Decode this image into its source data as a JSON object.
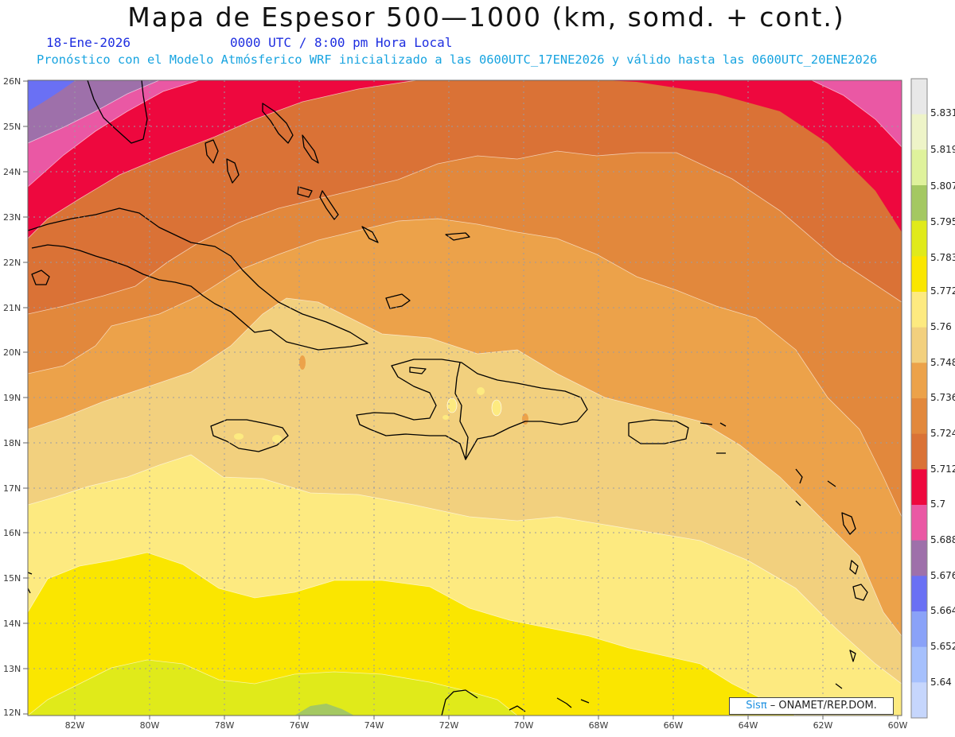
{
  "header": {
    "title": "Mapa de Espesor 500—1000 (km, somd. + cont.)",
    "date": "18-Ene-2026",
    "time": "0000 UTC / 8:00 pm Hora Local",
    "forecast": "Pronóstico con el Modelo Atmósferico WRF inicializado a las 0600UTC_17ENE2026 y válido hasta las  0600UTC_20ENE2026"
  },
  "axes": {
    "lat_labels": [
      "26N",
      "25N",
      "24N",
      "23N",
      "22N",
      "21N",
      "20N",
      "19N",
      "18N",
      "17N",
      "16N",
      "15N",
      "14N",
      "13N",
      "12N"
    ],
    "lon_labels": [
      "82W",
      "80W",
      "78W",
      "76W",
      "74W",
      "72W",
      "70W",
      "68W",
      "66W",
      "64W",
      "62W",
      "60W"
    ]
  },
  "colorbar": {
    "labels": [
      "5.831",
      "5.819",
      "5.807",
      "5.795",
      "5.783",
      "5.772",
      "5.76",
      "5.748",
      "5.736",
      "5.724",
      "5.712",
      "5.7",
      "5.688",
      "5.676",
      "5.664",
      "5.652",
      "5.64"
    ],
    "colors": [
      "#e8e8e8",
      "#eef4c8",
      "#dff29c",
      "#a4c862",
      "#e0ea1a",
      "#fae600",
      "#fdea80",
      "#f2d07e",
      "#eca24a",
      "#e2883c",
      "#da7236",
      "#ee083e",
      "#ea58a4",
      "#9e70aa",
      "#6a70f4",
      "#8aa2f8",
      "#a6c0fc",
      "#c6d6fc"
    ]
  },
  "map_colors": {
    "blue": "#6a70f4",
    "purple": "#9e70aa",
    "pink": "#ea58a4",
    "red": "#ee083e",
    "dark_orange": "#da7236",
    "orange": "#e2883c",
    "light_orange": "#eca24a",
    "tan": "#f2d07e",
    "light_yellow": "#fdea80",
    "yellow": "#fae600",
    "lime": "#e0ea1a",
    "green": "#a4c862"
  },
  "credit": {
    "sis": "Sisπ",
    "org": " –  ONAMET/REP.DOM."
  }
}
